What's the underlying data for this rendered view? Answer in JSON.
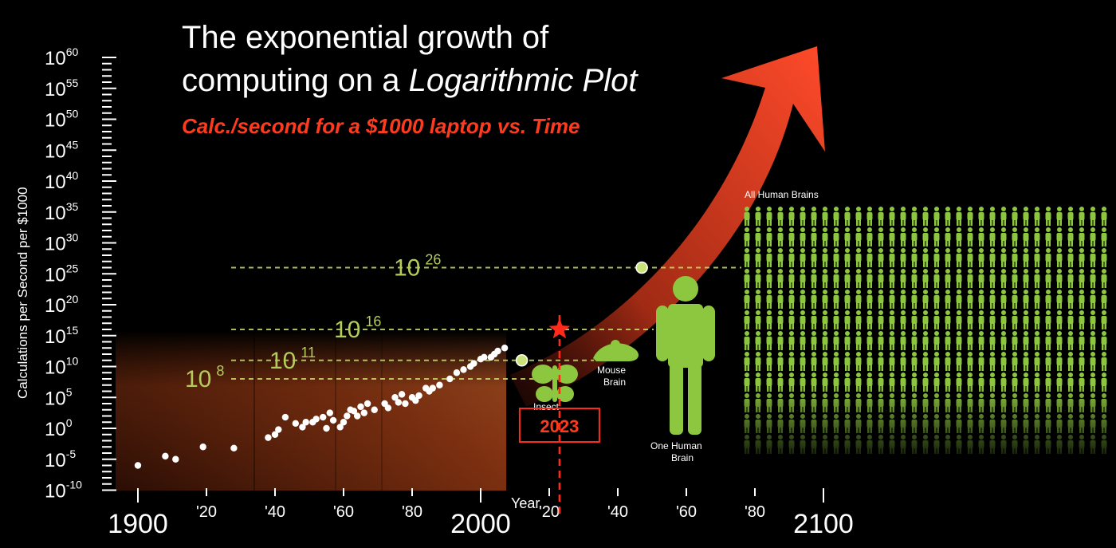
{
  "chart_data": {
    "type": "scatter",
    "title_line1": "The exponential growth of",
    "title_line2_prefix": "computing on a ",
    "title_line2_emph": "Logarithmic Plot",
    "subtitle": "Calc./second for a $1000 laptop vs. Time",
    "ylabel": "Calculations per Second per $1000",
    "xlabel": "Year",
    "y_log_scale": true,
    "xlim": [
      1900,
      2100
    ],
    "ylim_exponent": [
      -10,
      60
    ],
    "y_ticks": [
      {
        "base": "10",
        "exp": "60",
        "value": 60
      },
      {
        "base": "10",
        "exp": "55",
        "value": 55
      },
      {
        "base": "10",
        "exp": "50",
        "value": 50
      },
      {
        "base": "10",
        "exp": "45",
        "value": 45
      },
      {
        "base": "10",
        "exp": "40",
        "value": 40
      },
      {
        "base": "10",
        "exp": "35",
        "value": 35
      },
      {
        "base": "10",
        "exp": "30",
        "value": 30
      },
      {
        "base": "10",
        "exp": "25",
        "value": 25
      },
      {
        "base": "10",
        "exp": "20",
        "value": 20
      },
      {
        "base": "10",
        "exp": "15",
        "value": 15
      },
      {
        "base": "10",
        "exp": "10",
        "value": 10
      },
      {
        "base": "10",
        "exp": "5",
        "value": 5
      },
      {
        "base": "10",
        "exp": "0",
        "value": 0
      },
      {
        "base": "10",
        "exp": "-5",
        "value": -5
      },
      {
        "base": "10",
        "exp": "-10",
        "value": -10
      }
    ],
    "x_ticks": [
      {
        "label": "1900",
        "value": 1900,
        "big": true
      },
      {
        "label": "'20",
        "value": 1920,
        "big": false
      },
      {
        "label": "'40",
        "value": 1940,
        "big": false
      },
      {
        "label": "'60",
        "value": 1960,
        "big": false
      },
      {
        "label": "'80",
        "value": 1980,
        "big": false
      },
      {
        "label": "2000",
        "value": 2000,
        "big": true
      },
      {
        "label": "'20",
        "value": 2020,
        "big": false
      },
      {
        "label": "'40",
        "value": 2040,
        "big": false
      },
      {
        "label": "'60",
        "value": 2060,
        "big": false
      },
      {
        "label": "'80",
        "value": 2080,
        "big": false
      },
      {
        "label": "2100",
        "value": 2100,
        "big": true
      }
    ],
    "points": [
      {
        "x": 1900,
        "y": -6
      },
      {
        "x": 1908,
        "y": -4.5
      },
      {
        "x": 1911,
        "y": -5
      },
      {
        "x": 1919,
        "y": -3
      },
      {
        "x": 1928,
        "y": -3.2
      },
      {
        "x": 1938,
        "y": -1.5
      },
      {
        "x": 1940,
        "y": -1
      },
      {
        "x": 1941,
        "y": -0.2
      },
      {
        "x": 1943,
        "y": 1.8
      },
      {
        "x": 1946,
        "y": 0.8
      },
      {
        "x": 1948,
        "y": 0.2
      },
      {
        "x": 1949,
        "y": 1
      },
      {
        "x": 1951,
        "y": 1
      },
      {
        "x": 1952,
        "y": 1.5
      },
      {
        "x": 1954,
        "y": 1.8
      },
      {
        "x": 1955,
        "y": 0
      },
      {
        "x": 1956,
        "y": 2.5
      },
      {
        "x": 1957,
        "y": 1.3
      },
      {
        "x": 1959,
        "y": 0.2
      },
      {
        "x": 1960,
        "y": 1
      },
      {
        "x": 1961,
        "y": 2
      },
      {
        "x": 1962,
        "y": 3
      },
      {
        "x": 1963,
        "y": 2.8
      },
      {
        "x": 1964,
        "y": 2
      },
      {
        "x": 1965,
        "y": 3.5
      },
      {
        "x": 1966,
        "y": 2.5
      },
      {
        "x": 1967,
        "y": 4
      },
      {
        "x": 1969,
        "y": 3
      },
      {
        "x": 1972,
        "y": 4
      },
      {
        "x": 1973,
        "y": 3.3
      },
      {
        "x": 1975,
        "y": 5
      },
      {
        "x": 1976,
        "y": 4.2
      },
      {
        "x": 1977,
        "y": 5.5
      },
      {
        "x": 1978,
        "y": 4
      },
      {
        "x": 1980,
        "y": 5
      },
      {
        "x": 1981,
        "y": 4.5
      },
      {
        "x": 1982,
        "y": 5.3
      },
      {
        "x": 1984,
        "y": 6.5
      },
      {
        "x": 1985,
        "y": 6
      },
      {
        "x": 1986,
        "y": 6.5
      },
      {
        "x": 1988,
        "y": 7
      },
      {
        "x": 1991,
        "y": 8
      },
      {
        "x": 1993,
        "y": 9
      },
      {
        "x": 1995,
        "y": 9.5
      },
      {
        "x": 1997,
        "y": 10
      },
      {
        "x": 1998,
        "y": 10.5
      },
      {
        "x": 2000,
        "y": 11.2
      },
      {
        "x": 2001,
        "y": 11.5
      },
      {
        "x": 2003,
        "y": 11.5
      },
      {
        "x": 2004,
        "y": 12
      },
      {
        "x": 2005,
        "y": 12.5
      },
      {
        "x": 2007,
        "y": 13
      }
    ],
    "projection_points": [
      {
        "x": 2012,
        "y": 11
      },
      {
        "x": 2047,
        "y": 26
      }
    ],
    "reference_levels": [
      {
        "base": "10",
        "exp": "8",
        "value": 8
      },
      {
        "base": "10",
        "exp": "11",
        "value": 11
      },
      {
        "base": "10",
        "exp": "16",
        "value": 16
      },
      {
        "base": "10",
        "exp": "26",
        "value": 26
      }
    ],
    "highlight": {
      "year_label": "2023",
      "year": 2023,
      "value": 16
    },
    "annotations": {
      "insect": "Insect",
      "mouse_line1": "Mouse",
      "mouse_line2": "Brain",
      "human_line1": "One Human",
      "human_line2": "Brain",
      "all_humans": "All Human Brains"
    },
    "colors": {
      "background": "#000000",
      "points": "#ffffff",
      "arrow": "#e8402a",
      "accent_red": "#ff3b1f",
      "green": "#8dc63f",
      "green_label": "#b4cc5a",
      "shade": "#b5531f"
    }
  }
}
